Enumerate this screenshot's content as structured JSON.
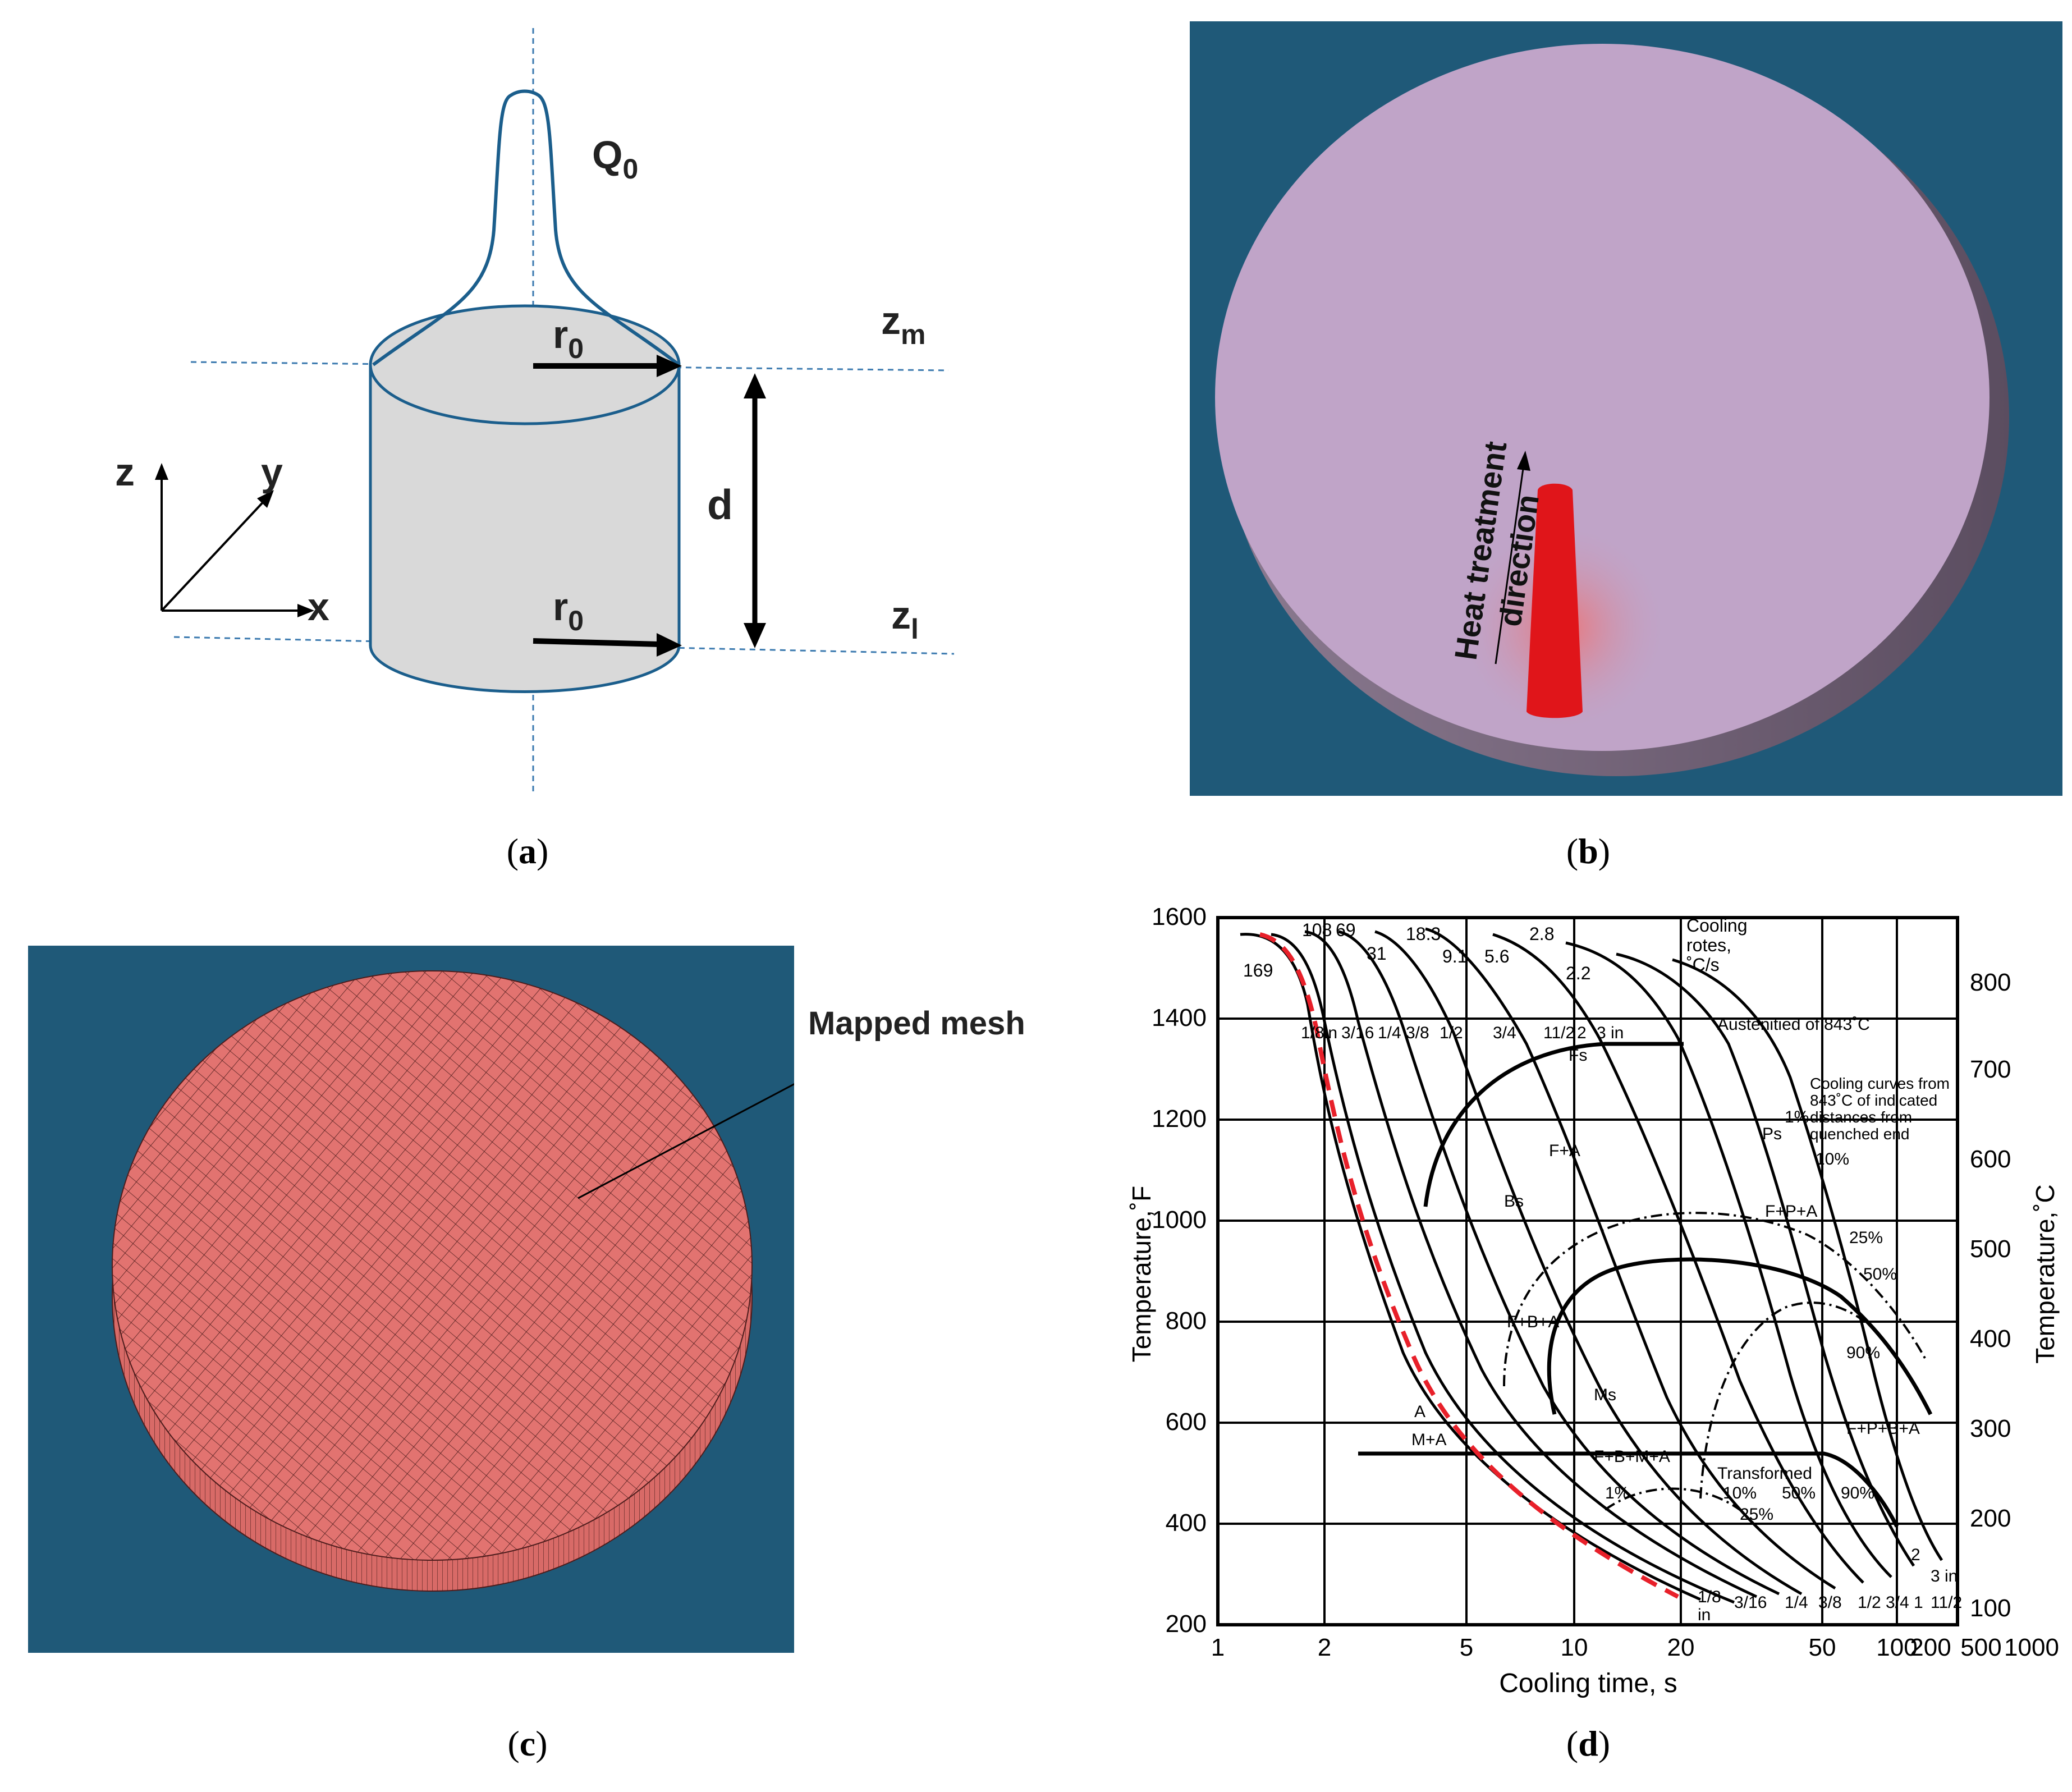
{
  "panel_a": {
    "heat_source_label": "Q",
    "heat_source_sub": "0",
    "radius_label": "r",
    "radius_sub": "0",
    "depth_label": "d",
    "z_top_label": "z",
    "z_top_sub": "m",
    "z_bottom_label": "z",
    "z_bottom_sub": "l",
    "axis_x": "x",
    "axis_y": "y",
    "axis_z": "z",
    "caption_letter": "a"
  },
  "panel_b": {
    "annotation_line1": "Heat treatment",
    "annotation_line2": "direction",
    "caption_letter": "b",
    "colors": {
      "background": "#1f5978",
      "disk": "#c0a4c8",
      "hot": "#e0151a"
    }
  },
  "panel_c": {
    "annotation": "Mapped mesh",
    "caption_letter": "c",
    "colors": {
      "background": "#1f5978",
      "mesh_fill": "#e27370",
      "mesh_line": "#4d1c1c"
    }
  },
  "panel_d": {
    "caption_letter": "d",
    "xlabel": "Cooling time, s",
    "ylabel_left": "Temperature,˚F",
    "ylabel_right": "Temperature,˚C",
    "x_ticks": [
      "1",
      "2",
      "5",
      "10",
      "20",
      "50",
      "100",
      "200",
      "500",
      "1000"
    ],
    "y_ticks_left": [
      "200",
      "400",
      "600",
      "800",
      "1000",
      "1200",
      "1400",
      "1600"
    ],
    "y_ticks_right": [
      "100",
      "200",
      "300",
      "400",
      "500",
      "600",
      "700",
      "800"
    ],
    "cooling_rate_title": [
      "Cooling",
      "rotes,",
      "˚C/s"
    ],
    "cooling_rates": [
      "169",
      "108",
      "69",
      "31",
      "18.3",
      "9.1",
      "5.6",
      "2.8",
      "2.2"
    ],
    "distance_top": [
      "1/8in",
      "3/16",
      "1/4",
      "3/8",
      "1/2",
      "3/4",
      "11/2",
      "2",
      "3 in"
    ],
    "distance_bottom": [
      "1/8",
      "in",
      "3/16",
      "1/4",
      "3/8",
      "1/2",
      "3/4",
      "1",
      "11/2",
      "2",
      "3 in"
    ],
    "austenitized": "Austenitied of 843˚C",
    "curves_note": [
      "Cooling curves from",
      "843˚C of  indicated",
      "distances from",
      "quenched end"
    ],
    "phase_labels": [
      "F+A",
      "F+P+A",
      "F+B+A",
      "F+B+M+A",
      "F+P+B+A",
      "M+A",
      "A",
      "Fs",
      "Ps",
      "Bs",
      "Ms"
    ],
    "percent_labels": [
      "1%",
      "10%",
      "25%",
      "50%",
      "90%",
      "1%",
      "10%",
      "50%",
      "90%",
      "25%"
    ],
    "transformed": "Transformed",
    "highlight_color": "#e8202a"
  }
}
